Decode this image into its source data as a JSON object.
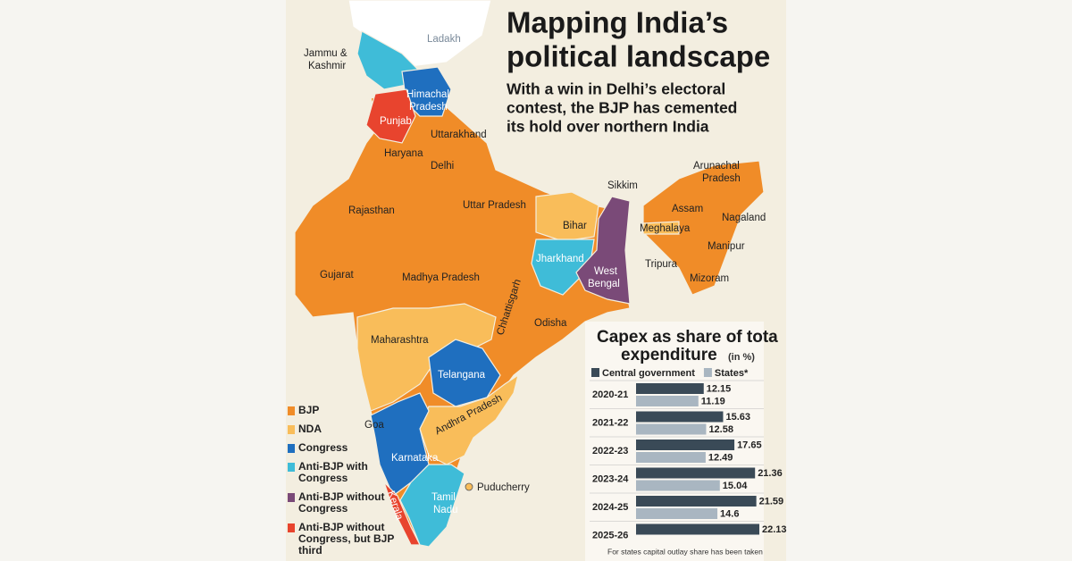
{
  "header": {
    "title_lines": [
      "Mapping India’s",
      "political landscape"
    ],
    "subtitle_lines": [
      "With a win in Delhi’s electoral",
      "contest, the BJP has cemented",
      "its hold over northern India"
    ]
  },
  "map": {
    "labels": [
      "Ladakh",
      "Jammu &",
      "Kashmir",
      "Himachal",
      "Pradesh",
      "Punjab",
      "Uttarakhand",
      "Haryana",
      "Delhi",
      "Rajasthan",
      "Uttar Pradesh",
      "Sikkim",
      "Arunachal",
      "Pradesh",
      "Assam",
      "Nagaland",
      "Bihar",
      "Meghalaya",
      "Manipur",
      "Jharkhand",
      "West",
      "Bengal",
      "Tripura",
      "Mizoram",
      "Gujarat",
      "Madhya Pradesh",
      "Chhattisgarh",
      "Odisha",
      "Maharashtra",
      "Telangana",
      "Goa",
      "Andhra Pradesh",
      "Karnataka",
      "Tamil",
      "Nadu",
      "Puducherry",
      "Kerala"
    ]
  },
  "legend": [
    {
      "lines": [
        "BJP"
      ],
      "color": "#f08c28"
    },
    {
      "lines": [
        "NDA"
      ],
      "color": "#f9bd5a"
    },
    {
      "lines": [
        "Congress"
      ],
      "color": "#1f6fbf"
    },
    {
      "lines": [
        "Anti-BJP with",
        "Congress"
      ],
      "color": "#3fbcd8"
    },
    {
      "lines": [
        "Anti-BJP without",
        "Congress"
      ],
      "color": "#7a4a78"
    },
    {
      "lines": [
        "Anti-BJP without",
        "Congress, but BJP",
        "third"
      ],
      "color": "#e8442e"
    }
  ],
  "chart_data": {
    "type": "bar",
    "orientation": "horizontal",
    "title_lines": [
      "Capex as share of tota",
      "expenditure"
    ],
    "unit": "(in %)",
    "categories": [
      "2020-21",
      "2021-22",
      "2022-23",
      "2023-24",
      "2024-25",
      "2025-26"
    ],
    "series": [
      {
        "name": "Central government",
        "color": "#3a4a57",
        "values": [
          12.15,
          15.63,
          17.65,
          21.36,
          21.59,
          22.13
        ]
      },
      {
        "name": "States*",
        "color": "#a9b6c1",
        "values": [
          11.19,
          12.58,
          12.49,
          15.04,
          14.6,
          null
        ]
      }
    ],
    "note": "For states capital outlay share has been taken"
  }
}
